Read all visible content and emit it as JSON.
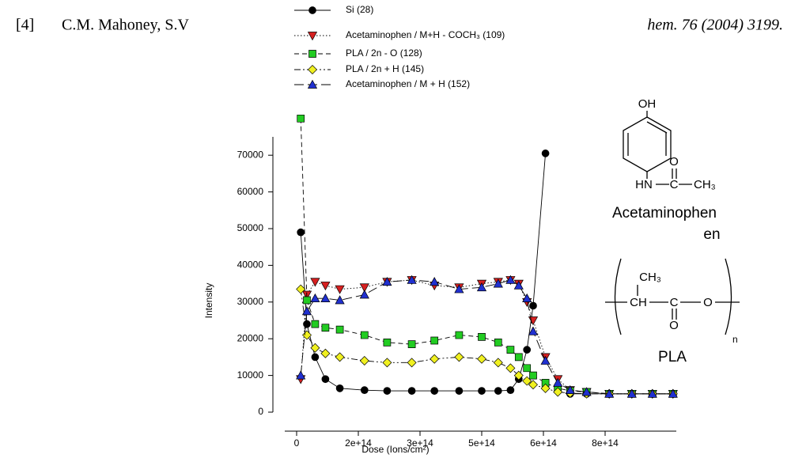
{
  "reference": {
    "number": "[4]",
    "authors": "C.M. Mahoney, S.V",
    "source": "hem. 76 (2004) 3199."
  },
  "chart_data": {
    "type": "line",
    "xlabel": "Dose (Ions/cm²)",
    "ylabel": "Intensity",
    "x": [
      10000000000000.0,
      25000000000000.0,
      45000000000000.0,
      70000000000000.0,
      105000000000000.0,
      165000000000000.0,
      220000000000000.0,
      280000000000000.0,
      335000000000000.0,
      395000000000000.0,
      450000000000000.0,
      490000000000000.0,
      520000000000000.0,
      540000000000000.0,
      560000000000000.0,
      575000000000000.0,
      605000000000000.0,
      635000000000000.0,
      665000000000000.0,
      705000000000000.0,
      760000000000000.0,
      815000000000000.0,
      865000000000000.0,
      915000000000000.0
    ],
    "xlim": [
      0,
      950000000000000.0
    ],
    "xticks": [
      0,
      {
        "value": 150000000000000.0,
        "label": "2e+14"
      },
      {
        "value": 300000000000000.0,
        "label": "3e+14"
      },
      {
        "value": 450000000000000.0,
        "label": "5e+14"
      },
      {
        "value": 600000000000000.0,
        "label": "6e+14"
      },
      {
        "value": 750000000000000.0,
        "label": "8e+14"
      }
    ],
    "ylim": [
      0,
      75000
    ],
    "yticks": [
      0,
      10000,
      20000,
      30000,
      40000,
      50000,
      60000,
      70000
    ],
    "series": [
      {
        "name": "Si (28)",
        "color": "#000000",
        "marker": "circle",
        "line_style": "solid",
        "values": [
          49000,
          24000,
          15000,
          9000,
          6500,
          6000,
          5800,
          5800,
          5800,
          5800,
          5800,
          5800,
          6000,
          9000,
          17000,
          29000,
          70500,
          null,
          5000,
          5000,
          5000,
          5000,
          5000,
          5000
        ]
      },
      {
        "name": "Acetaminophen / M+H - COCH₃ (109)",
        "color": "#d62020",
        "marker": "triangle-down",
        "line_style": "dotted",
        "values": [
          9000,
          32000,
          35500,
          34500,
          33500,
          34000,
          35500,
          36000,
          34500,
          34000,
          35000,
          35500,
          36000,
          35000,
          30000,
          25000,
          15000,
          9000,
          6000,
          5500,
          5000,
          5000,
          5000,
          5000
        ]
      },
      {
        "name": "PLA / 2n - O (128)",
        "color": "#22cc22",
        "marker": "square",
        "line_style": "dashed",
        "values": [
          80000,
          30500,
          24000,
          23000,
          22500,
          21000,
          19000,
          18500,
          19500,
          21000,
          20500,
          19000,
          17000,
          15000,
          12000,
          10000,
          8000,
          6500,
          5800,
          5500,
          5000,
          5000,
          5000,
          5000
        ]
      },
      {
        "name": "PLA / 2n + H (145)",
        "color": "#f0f020",
        "marker": "diamond",
        "line_style": "dash-dot-dot",
        "values": [
          33500,
          21000,
          17500,
          16000,
          15000,
          14000,
          13500,
          13500,
          14500,
          15000,
          14500,
          13500,
          12000,
          10000,
          8500,
          7500,
          6500,
          5500,
          5200,
          5000,
          5000,
          5000,
          5000,
          5000
        ]
      },
      {
        "name": "Acetaminophen / M + H (152)",
        "color": "#2030d0",
        "marker": "triangle-up",
        "line_style": "long-dash",
        "values": [
          10000,
          27500,
          31000,
          31000,
          30500,
          32000,
          35500,
          36000,
          35500,
          33500,
          34000,
          35000,
          36000,
          34500,
          31000,
          22000,
          14000,
          8000,
          6000,
          5500,
          5000,
          5000,
          5000,
          5000
        ]
      }
    ]
  },
  "structures": {
    "acetaminophen": {
      "oh": "OH",
      "hn": "HN",
      "c": "C",
      "o": "O",
      "ch3": "CH₃",
      "name": "Acetaminophen",
      "name_overflow": "en"
    },
    "pla": {
      "ch3": "CH₃",
      "ch": "CH",
      "c": "C",
      "o_chain": "O",
      "o_carbonyl": "O",
      "n": "n",
      "name": "PLA"
    }
  }
}
